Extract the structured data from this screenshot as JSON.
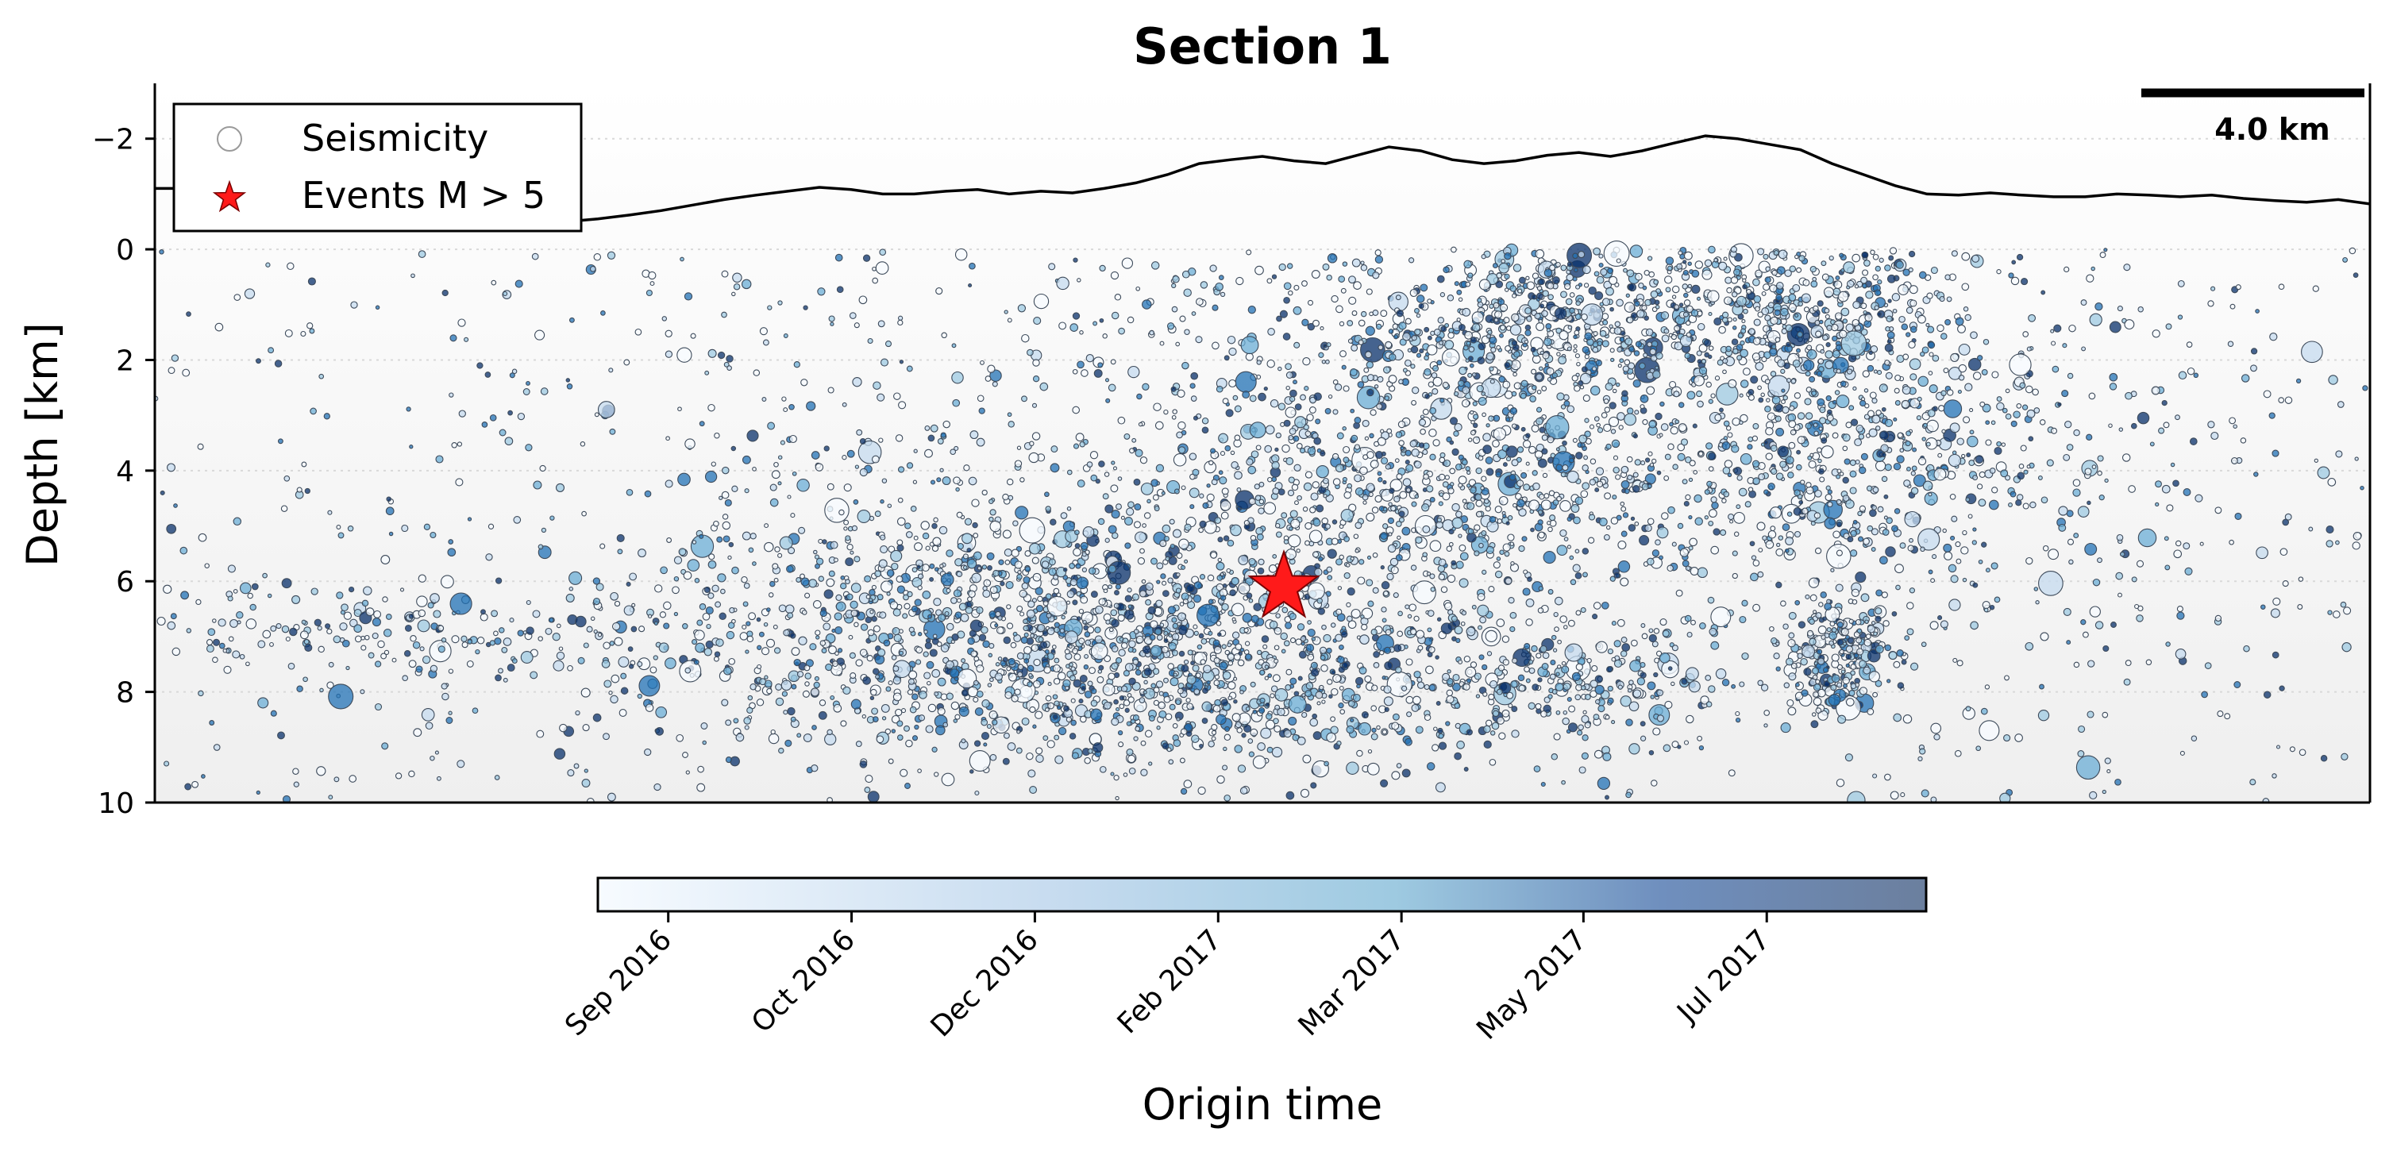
{
  "chart_data": {
    "type": "scatter",
    "title": "Section 1",
    "ylabel": "Depth [km]",
    "ylim": [
      10,
      -3
    ],
    "y_ticks": [
      -2,
      0,
      2,
      4,
      6,
      8,
      10
    ],
    "y_tick_labels": [
      "−2",
      "0",
      "2",
      "4",
      "6",
      "8",
      "10"
    ],
    "y_grid": true,
    "x_axis_visible": false,
    "legend": {
      "placement": "top-left",
      "entries": [
        "Seismicity",
        "Events M > 5"
      ]
    },
    "scale_bar_label": "4.0 km",
    "colorbar": {
      "label": "Origin time",
      "orientation": "horizontal",
      "placement": "bottom",
      "tick_labels": [
        "Sep 2016",
        "Oct 2016",
        "Dec 2016",
        "Feb 2017",
        "Mar 2017",
        "May 2017",
        "Jul 2017"
      ],
      "colors": [
        "#f7fbff",
        "#c6dbef",
        "#9ecae1",
        "#6baed6",
        "#2171b5",
        "#08306b"
      ]
    },
    "topography_depth_km": [
      -1.1,
      -1.1,
      -1.08,
      -1.0,
      -0.95,
      -0.82,
      -0.72,
      -0.6,
      -0.5,
      -0.42,
      -0.55,
      -0.5,
      -0.58,
      -0.5,
      -0.55,
      -0.62,
      -0.7,
      -0.8,
      -0.9,
      -0.98,
      -1.05,
      -1.12,
      -1.08,
      -1.0,
      -1.0,
      -1.05,
      -1.08,
      -1.0,
      -1.05,
      -1.02,
      -1.1,
      -1.2,
      -1.35,
      -1.55,
      -1.62,
      -1.68,
      -1.6,
      -1.55,
      -1.7,
      -1.85,
      -1.78,
      -1.62,
      -1.55,
      -1.6,
      -1.7,
      -1.75,
      -1.68,
      -1.78,
      -1.92,
      -2.05,
      -2.0,
      -1.9,
      -1.8,
      -1.55,
      -1.35,
      -1.15,
      -1.0,
      -0.98,
      -1.02,
      -0.98,
      -0.95,
      -0.95,
      -1.0,
      -0.98,
      -0.95,
      -0.98,
      -0.92,
      -0.88,
      -0.85,
      -0.9,
      -0.82
    ],
    "mainshock": {
      "position_fraction": 0.51,
      "depth_km": 6.1
    },
    "seismicity_clusters": [
      {
        "center_fraction": 0.1,
        "depth_km": 7.0,
        "spread_fraction": 0.05,
        "spread_km": 0.5,
        "count": 160
      },
      {
        "center_fraction": 0.4,
        "depth_km": 7.0,
        "spread_fraction": 0.085,
        "spread_km": 1.1,
        "count": 1500
      },
      {
        "center_fraction": 0.585,
        "depth_km": 4.2,
        "spread_fraction": 0.05,
        "spread_km": 0.9,
        "count": 500
      },
      {
        "center_fraction": 0.63,
        "depth_km": 1.2,
        "spread_fraction": 0.035,
        "spread_km": 0.8,
        "count": 500
      },
      {
        "center_fraction": 0.735,
        "depth_km": 1.0,
        "spread_fraction": 0.04,
        "spread_km": 0.8,
        "count": 520
      },
      {
        "center_fraction": 0.765,
        "depth_km": 3.6,
        "spread_fraction": 0.05,
        "spread_km": 1.2,
        "count": 550
      },
      {
        "center_fraction": 0.76,
        "depth_km": 7.3,
        "spread_fraction": 0.012,
        "spread_km": 0.55,
        "count": 260
      },
      {
        "center_fraction": 0.63,
        "depth_km": 7.8,
        "spread_fraction": 0.04,
        "spread_km": 0.5,
        "count": 260
      },
      {
        "center_fraction": 0.49,
        "depth_km": 8.0,
        "spread_fraction": 0.035,
        "spread_km": 0.6,
        "count": 220
      },
      {
        "center_fraction": 0.55,
        "depth_km": 2.4,
        "spread_fraction": 0.06,
        "spread_km": 1.4,
        "count": 320
      },
      {
        "center_fraction": 0.55,
        "depth_km": 5.0,
        "spread_fraction": 0.25,
        "spread_km": 2.6,
        "count": 1300
      }
    ]
  }
}
